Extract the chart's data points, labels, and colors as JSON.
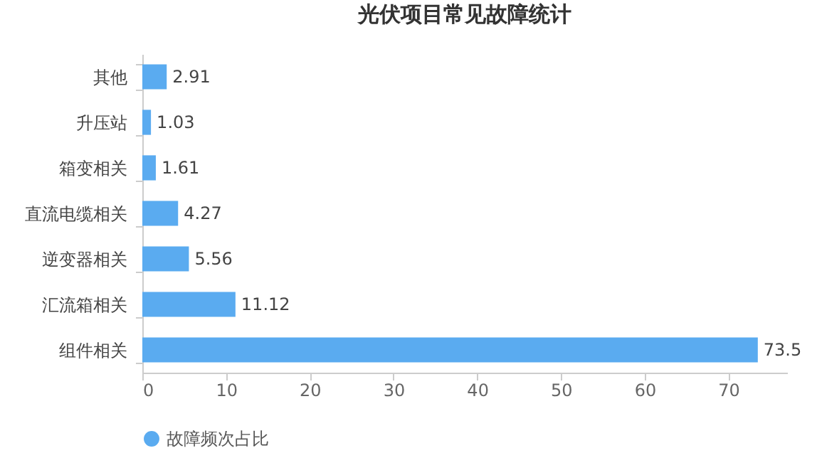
{
  "chart_data": {
    "type": "bar",
    "orientation": "horizontal",
    "title": "光伏项目常见故障统计",
    "categories": [
      "其他",
      "升压站",
      "箱变相关",
      "直流电缆相关",
      "逆变器相关",
      "汇流箱相关",
      "组件相关"
    ],
    "series": [
      {
        "name": "故障频次占比",
        "color": "#5aabf0",
        "values": [
          2.91,
          1.03,
          1.61,
          4.27,
          5.56,
          11.12,
          73.5
        ]
      }
    ],
    "xlim": [
      0,
      77
    ],
    "xticks": [
      0,
      10,
      20,
      30,
      40,
      50,
      60,
      70
    ],
    "grid": false,
    "legend": "bottom",
    "data_labels": true
  }
}
